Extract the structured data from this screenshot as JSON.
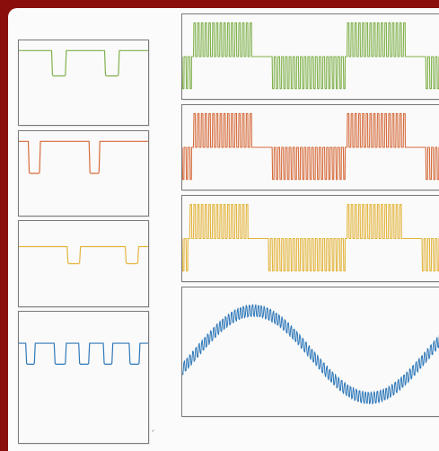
{
  "colors": {
    "background_frame": "#8a0f0a",
    "canvas": "#fbfbfb",
    "panel_border": "#7a7a7a",
    "green": "#7fb04a",
    "orange": "#d56a3a",
    "yellow": "#e3b43c",
    "blue": "#2f78b8"
  },
  "left_panels": [
    {
      "id": "left-gate-green",
      "color_key": "green",
      "wave": "gate",
      "level_high": 0.12,
      "level_low": 0.42,
      "pulses": [
        [
          0.26,
          0.36
        ],
        [
          0.67,
          0.77
        ]
      ]
    },
    {
      "id": "left-gate-orange",
      "color_key": "orange",
      "wave": "gate_inv",
      "level_high": 0.12,
      "level_low": 0.5,
      "pulses": [
        [
          0.08,
          0.16
        ],
        [
          0.55,
          0.62
        ]
      ]
    },
    {
      "id": "left-gate-yellow",
      "color_key": "yellow",
      "wave": "gate",
      "level_high": 0.3,
      "level_low": 0.5,
      "pulses": [
        [
          0.38,
          0.47
        ],
        [
          0.83,
          0.92
        ]
      ]
    },
    {
      "id": "left-gate-blue",
      "color_key": "blue",
      "wave": "multi",
      "level_high": 0.24,
      "level_low": 0.4,
      "pulses": [
        [
          0.06,
          0.12
        ],
        [
          0.28,
          0.36
        ],
        [
          0.47,
          0.54
        ],
        [
          0.66,
          0.72
        ],
        [
          0.86,
          0.93
        ]
      ]
    }
  ],
  "right_panels": [
    {
      "id": "right-pwm-green",
      "color_key": "green",
      "wave": "pwm"
    },
    {
      "id": "right-pwm-orange",
      "color_key": "orange",
      "wave": "pwm"
    },
    {
      "id": "right-pwm-yellow",
      "color_key": "yellow",
      "wave": "pwm"
    },
    {
      "id": "right-sine-blue",
      "color_key": "blue",
      "wave": "sine"
    }
  ]
}
